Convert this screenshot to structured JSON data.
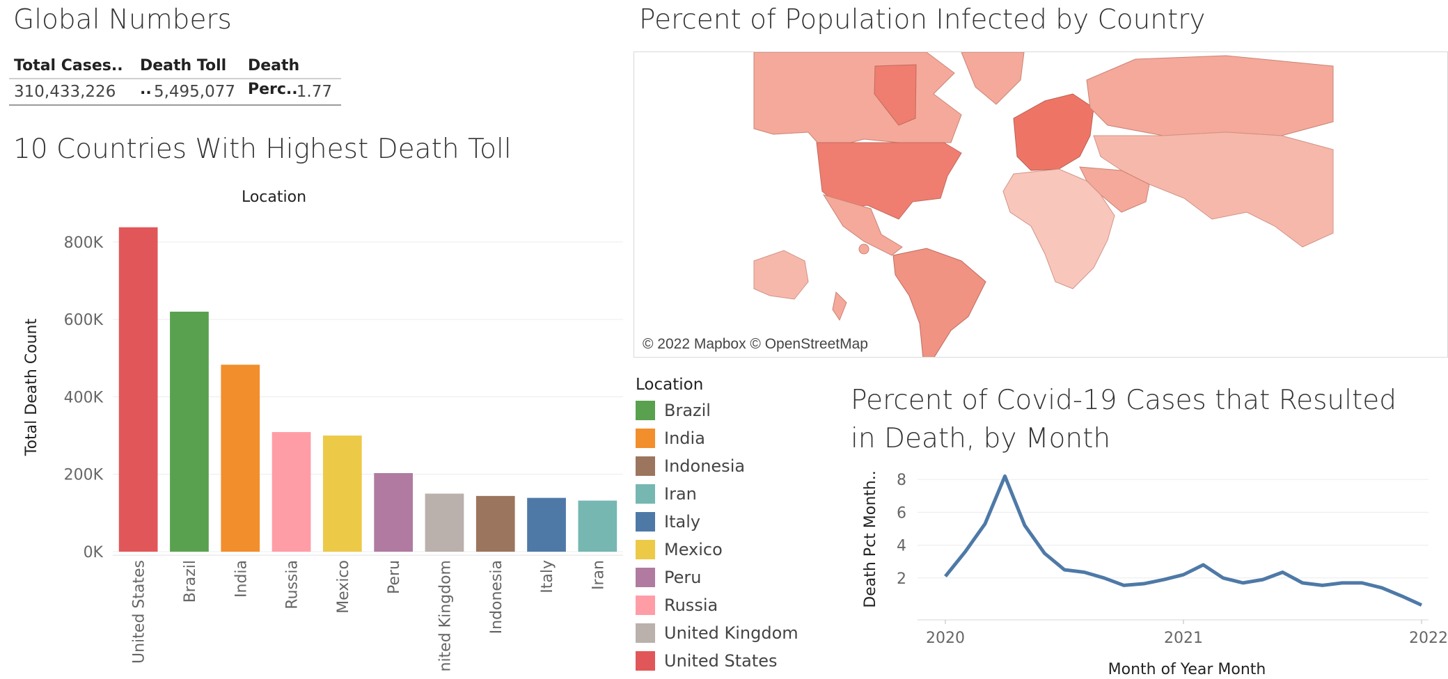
{
  "global": {
    "title": "Global Numbers",
    "headers": [
      "Total Cases..",
      "Death Toll ..",
      "Death Perc.."
    ],
    "values": [
      "310,433,226",
      "5,495,077",
      "1.77"
    ]
  },
  "bars_panel": {
    "title": "10 Countries With Highest Death Toll"
  },
  "map_panel": {
    "title": "Percent of Population Infected by Country",
    "attribution": "© 2022 Mapbox © OpenStreetMap"
  },
  "line_panel": {
    "title": "Percent of Covid-19 Cases that Resulted in Death, by Month"
  },
  "legend": {
    "title": "Location",
    "items": [
      {
        "label": "Brazil",
        "color": "#59a14f"
      },
      {
        "label": "India",
        "color": "#f28e2b"
      },
      {
        "label": "Indonesia",
        "color": "#9c755f"
      },
      {
        "label": "Iran",
        "color": "#76b7b2"
      },
      {
        "label": "Italy",
        "color": "#4e79a7"
      },
      {
        "label": "Mexico",
        "color": "#edc948"
      },
      {
        "label": "Peru",
        "color": "#b07aa1"
      },
      {
        "label": "Russia",
        "color": "#ff9da7"
      },
      {
        "label": "United Kingdom",
        "color": "#bab0ac"
      },
      {
        "label": "United States",
        "color": "#e15759"
      }
    ]
  },
  "chart_data": [
    {
      "type": "bar",
      "title": "10 Countries With Highest Death Toll",
      "header": "Location",
      "ylabel": "Total Death Count",
      "ylim": [
        0,
        850000
      ],
      "yticks": [
        0,
        200000,
        400000,
        600000,
        800000
      ],
      "ytick_labels": [
        "0K",
        "200K",
        "400K",
        "600K",
        "800K"
      ],
      "categories": [
        "United States",
        "Brazil",
        "India",
        "Russia",
        "Mexico",
        "Peru",
        "United Kingdom",
        "Indonesia",
        "Italy",
        "Iran"
      ],
      "values": [
        838000,
        620000,
        483000,
        309000,
        300000,
        203000,
        150000,
        144000,
        139000,
        132000
      ],
      "colors": [
        "#e15759",
        "#59a14f",
        "#f28e2b",
        "#ff9da7",
        "#edc948",
        "#b07aa1",
        "#bab0ac",
        "#9c755f",
        "#4e79a7",
        "#76b7b2"
      ],
      "grid": true
    },
    {
      "type": "line",
      "title": "Percent of Covid-19 Cases that Resulted in Death, by Month",
      "xlabel": "Month of Year Month",
      "ylabel": "Death Pct Month..",
      "x": [
        "2020-01",
        "2020-02",
        "2020-03",
        "2020-04",
        "2020-05",
        "2020-06",
        "2020-07",
        "2020-08",
        "2020-09",
        "2020-10",
        "2020-11",
        "2020-12",
        "2021-01",
        "2021-02",
        "2021-03",
        "2021-04",
        "2021-05",
        "2021-06",
        "2021-07",
        "2021-08",
        "2021-09",
        "2021-10",
        "2021-11",
        "2021-12",
        "2022-01"
      ],
      "y": [
        2.1,
        3.6,
        5.3,
        8.2,
        5.2,
        3.5,
        2.5,
        2.35,
        2.0,
        1.55,
        1.65,
        1.9,
        2.2,
        2.8,
        2.0,
        1.7,
        1.9,
        2.35,
        1.7,
        1.55,
        1.7,
        1.7,
        1.4,
        0.9,
        0.35
      ],
      "xticks": [
        "2020",
        "2021",
        "2022"
      ],
      "yticks": [
        2,
        4,
        6,
        8
      ],
      "ylim": [
        0,
        8.6
      ],
      "color": "#4e79a7",
      "grid": true
    }
  ]
}
